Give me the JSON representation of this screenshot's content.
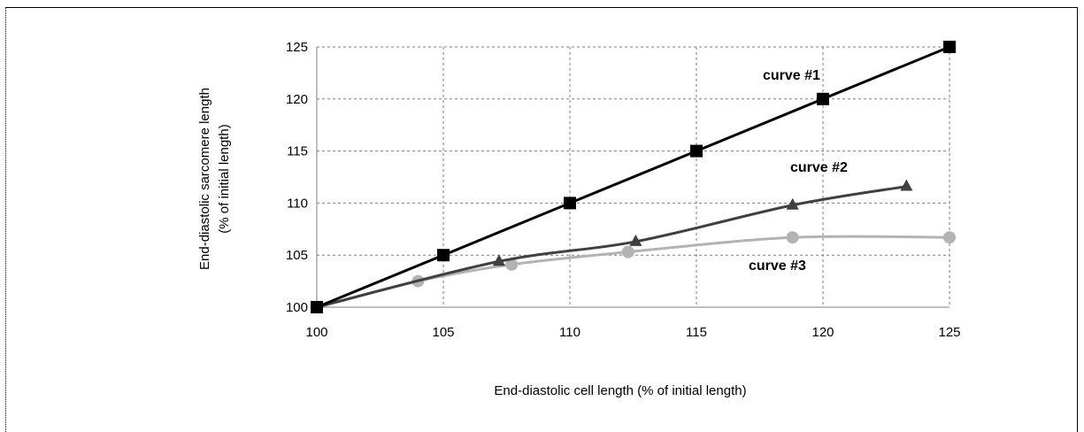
{
  "chart_data": {
    "type": "line",
    "xlabel": "End-diastolic cell length (% of initial length)",
    "ylabel": [
      "End-diastolic sarcomere length",
      "(% of initial length)"
    ],
    "xlim": [
      100,
      125
    ],
    "ylim": [
      100,
      125
    ],
    "xticks": [
      100,
      105,
      110,
      115,
      120,
      125
    ],
    "yticks": [
      100,
      105,
      110,
      115,
      120,
      125
    ],
    "grid": true,
    "series": [
      {
        "name": "curve  #1",
        "color": "#000000",
        "marker": "square",
        "smooth": false,
        "x": [
          100,
          105,
          110,
          115,
          120,
          125
        ],
        "y": [
          100,
          105,
          110,
          115,
          120,
          125
        ]
      },
      {
        "name": "curve  #2",
        "color": "#404040",
        "marker": "triangle",
        "smooth": true,
        "x": [
          100,
          107.2,
          112.6,
          118.8,
          123.3
        ],
        "y": [
          100,
          104.4,
          106.3,
          109.8,
          111.6
        ]
      },
      {
        "name": "curve  #3",
        "color": "#b3b3b3",
        "marker": "circle",
        "smooth": true,
        "x": [
          100,
          104,
          107.7,
          112.3,
          118.8,
          125
        ],
        "y": [
          100,
          102.5,
          104.1,
          105.3,
          106.7,
          106.7
        ]
      }
    ]
  }
}
